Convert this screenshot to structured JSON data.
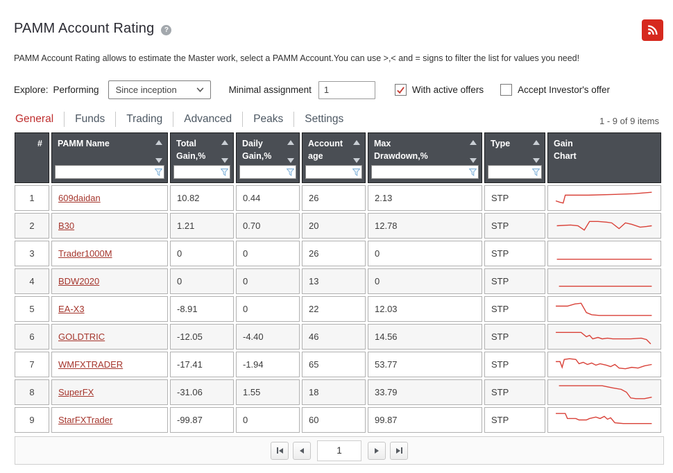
{
  "page": {
    "title": "PAMM Account Rating",
    "description": "PAMM Account Rating allows to estimate the Master work, select a PAMM Account.You can use >,< and = signs to filter the list for values you need!",
    "help_glyph": "?"
  },
  "colors": {
    "accent_red": "#bf2e2e",
    "link_red": "#a5352c",
    "header_bg": "#4a4e54",
    "sparkline_red": "#d94138",
    "rss_red": "#d6291e",
    "funnel_blue": "#7fb0d8",
    "check_red": "#c63b32"
  },
  "filters": {
    "explore_label": "Explore:",
    "performing_label": "Performing",
    "period_value": "Since inception",
    "minimal_assignment_label": "Minimal assignment",
    "minimal_assignment_value": "1",
    "with_active_offers_label": "With active offers",
    "with_active_offers_checked": true,
    "accept_investors_offer_label": "Accept Investor's offer",
    "accept_investors_offer_checked": false
  },
  "tabs": [
    {
      "label": "General",
      "active": true
    },
    {
      "label": "Funds",
      "active": false
    },
    {
      "label": "Trading",
      "active": false
    },
    {
      "label": "Advanced",
      "active": false
    },
    {
      "label": "Peaks",
      "active": false
    },
    {
      "label": "Settings",
      "active": false
    }
  ],
  "table": {
    "items_count": "1 - 9 of 9 items",
    "columns": [
      {
        "label": "#",
        "sortable": false,
        "filterable": false
      },
      {
        "label": "PAMM Name",
        "sortable": true,
        "filterable": true
      },
      {
        "label": "Total\nGain,%",
        "sortable": true,
        "filterable": true
      },
      {
        "label": "Daily\nGain,%",
        "sortable": true,
        "filterable": true
      },
      {
        "label": "Account\nage",
        "sortable": true,
        "filterable": true
      },
      {
        "label": "Max\nDrawdown,%",
        "sortable": true,
        "filterable": true
      },
      {
        "label": "Type",
        "sortable": true,
        "filterable": true
      },
      {
        "label": "Gain\nChart",
        "sortable": false,
        "filterable": false
      }
    ],
    "rows": [
      {
        "num": "1",
        "name": "609daidan",
        "total_gain": "10.82",
        "daily_gain": "0.44",
        "account_age": "26",
        "max_drawdown": "2.13",
        "type": "STP",
        "spark": [
          [
            4,
            19
          ],
          [
            8,
            21
          ],
          [
            11,
            22
          ],
          [
            13,
            11
          ],
          [
            35,
            11
          ],
          [
            60,
            10
          ],
          [
            78,
            9
          ],
          [
            95,
            7
          ]
        ]
      },
      {
        "num": "2",
        "name": "B30",
        "total_gain": "1.21",
        "daily_gain": "0.70",
        "account_age": "20",
        "max_drawdown": "12.78",
        "type": "STP",
        "spark": [
          [
            5,
            15
          ],
          [
            18,
            14
          ],
          [
            25,
            15
          ],
          [
            31,
            21
          ],
          [
            36,
            9
          ],
          [
            44,
            9
          ],
          [
            52,
            10
          ],
          [
            57,
            11
          ],
          [
            64,
            19
          ],
          [
            70,
            11
          ],
          [
            76,
            13
          ],
          [
            84,
            17
          ],
          [
            90,
            16
          ],
          [
            95,
            15
          ]
        ]
      },
      {
        "num": "3",
        "name": "Trader1000M",
        "total_gain": "0",
        "daily_gain": "0",
        "account_age": "26",
        "max_drawdown": "0",
        "type": "STP",
        "spark": [
          [
            5,
            23
          ],
          [
            95,
            23
          ]
        ]
      },
      {
        "num": "4",
        "name": "BDW2020",
        "total_gain": "0",
        "daily_gain": "0",
        "account_age": "13",
        "max_drawdown": "0",
        "type": "STP",
        "spark": [
          [
            7,
            22
          ],
          [
            95,
            22
          ]
        ]
      },
      {
        "num": "5",
        "name": "EA-X3",
        "total_gain": "-8.91",
        "daily_gain": "0",
        "account_age": "22",
        "max_drawdown": "12.03",
        "type": "STP",
        "spark": [
          [
            4,
            11
          ],
          [
            15,
            11
          ],
          [
            22,
            8
          ],
          [
            28,
            7
          ],
          [
            33,
            20
          ],
          [
            38,
            23
          ],
          [
            45,
            24
          ],
          [
            95,
            24
          ]
        ]
      },
      {
        "num": "6",
        "name": "GOLDTRIC",
        "total_gain": "-12.05",
        "daily_gain": "-4.40",
        "account_age": "46",
        "max_drawdown": "14.56",
        "type": "STP",
        "spark": [
          [
            4,
            9
          ],
          [
            28,
            9
          ],
          [
            33,
            15
          ],
          [
            36,
            13
          ],
          [
            39,
            18
          ],
          [
            44,
            16
          ],
          [
            48,
            18
          ],
          [
            53,
            17
          ],
          [
            58,
            18
          ],
          [
            75,
            18
          ],
          [
            85,
            17
          ],
          [
            90,
            19
          ],
          [
            94,
            25
          ]
        ]
      },
      {
        "num": "7",
        "name": "WMFXTRADER",
        "total_gain": "-17.41",
        "daily_gain": "-1.94",
        "account_age": "65",
        "max_drawdown": "53.77",
        "type": "STP",
        "spark": [
          [
            4,
            11
          ],
          [
            8,
            11
          ],
          [
            10,
            19
          ],
          [
            12,
            8
          ],
          [
            17,
            7
          ],
          [
            23,
            8
          ],
          [
            26,
            14
          ],
          [
            30,
            12
          ],
          [
            34,
            15
          ],
          [
            38,
            13
          ],
          [
            42,
            16
          ],
          [
            46,
            14
          ],
          [
            52,
            16
          ],
          [
            56,
            18
          ],
          [
            60,
            15
          ],
          [
            64,
            20
          ],
          [
            70,
            21
          ],
          [
            76,
            19
          ],
          [
            82,
            20
          ],
          [
            88,
            17
          ],
          [
            95,
            15
          ]
        ]
      },
      {
        "num": "8",
        "name": "SuperFX",
        "total_gain": "-31.06",
        "daily_gain": "1.55",
        "account_age": "18",
        "max_drawdown": "33.79",
        "type": "STP",
        "spark": [
          [
            7,
            6
          ],
          [
            48,
            6
          ],
          [
            58,
            9
          ],
          [
            66,
            11
          ],
          [
            71,
            15
          ],
          [
            75,
            23
          ],
          [
            80,
            24
          ],
          [
            88,
            24
          ],
          [
            95,
            22
          ]
        ]
      },
      {
        "num": "9",
        "name": "StarFXTrader",
        "total_gain": "-99.87",
        "daily_gain": "0",
        "account_age": "60",
        "max_drawdown": "99.87",
        "type": "STP",
        "spark": [
          [
            4,
            6
          ],
          [
            13,
            6
          ],
          [
            15,
            13
          ],
          [
            23,
            13
          ],
          [
            26,
            15
          ],
          [
            33,
            15
          ],
          [
            36,
            13
          ],
          [
            42,
            11
          ],
          [
            46,
            13
          ],
          [
            50,
            10
          ],
          [
            53,
            14
          ],
          [
            56,
            12
          ],
          [
            60,
            19
          ],
          [
            68,
            20
          ],
          [
            95,
            20
          ]
        ]
      }
    ]
  },
  "pagination": {
    "page_value": "1"
  }
}
